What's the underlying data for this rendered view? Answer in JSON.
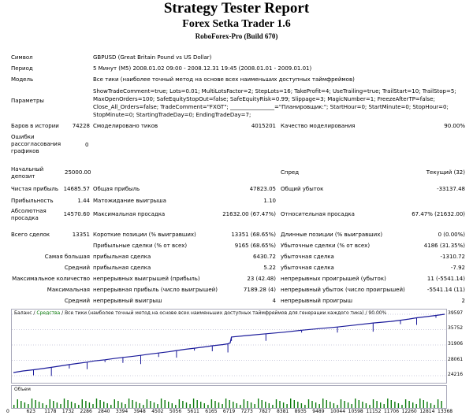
{
  "report": {
    "title": "Strategy Tester Report",
    "expert": "Forex Setka Trader 1.6",
    "server": "RoboForex-Pro (Build 670)"
  },
  "info": {
    "symbol_label": "Символ",
    "symbol_value": "GBPUSD (Great Britain Pound vs US Dollar)",
    "period_label": "Период",
    "period_value": "5 Минут (M5) 2008.01.02 09:00 - 2008.12.31 19:45 (2008.01.01 - 2009.01.01)",
    "model_label": "Модель",
    "model_value": "Все тики (наиболее точный метод на основе всех наименьших доступных таймфреймов)",
    "params_label": "Параметры",
    "params_value": "ShowTradeComment=true; Lots=0.01; MultiLotsFactor=2; StepLots=16; TakeProfit=4; UseTrailing=true; TrailStart=10; TrailStop=5; MaxOpenOrders=100; SafeEquityStopOut=false; SafeEquityRisk=0.99; Slippage=3; MagicNumber=1; FreezeAfterTP=false; Close_All_Orders=false; TradeComment=\"FXGT\"; ________________=\"Планировщик:\"; StartHour=0; StartMinute=0; StopHour=0; StopMinute=0; StartingTradeDay=0; EndingTradeDay=7;"
  },
  "stats": {
    "bars_label": "Баров в истории",
    "bars_value": "74228",
    "ticks_label": "Смоделировано тиков",
    "ticks_value": "4015201",
    "quality_label": "Качество моделирования",
    "quality_value": "90.00%",
    "errors_label": "Ошибки рассогласования графиков",
    "errors_value": "0",
    "deposit_label": "Начальный депозит",
    "deposit_value": "25000.00",
    "spread_label": "Спред",
    "spread_value": "Текущий (32)",
    "net_label": "Чистая прибыль",
    "net_value": "14685.57",
    "gross_profit_label": "Общая прибыль",
    "gross_profit_value": "47823.05",
    "gross_loss_label": "Общий убыток",
    "gross_loss_value": "-33137.48",
    "pf_label": "Прибыльность",
    "pf_value": "1.44",
    "expected_label": "Матожидание выигрыша",
    "expected_value": "1.10",
    "abs_dd_label": "Абсолютная просадка",
    "abs_dd_value": "14570.60",
    "max_dd_label": "Максимальная просадка",
    "max_dd_value": "21632.00 (67.47%)",
    "rel_dd_label": "Относительная просадка",
    "rel_dd_value": "67.47% (21632.00)",
    "total_label": "Всего сделок",
    "total_value": "13351",
    "short_label": "Короткие позиции (% выигравших)",
    "short_value": "13351 (68.65%)",
    "long_label": "Длинные позиции (% выигравших)",
    "long_value": "0 (0.00%)",
    "profit_trades_label": "Прибыльные сделки (% от всех)",
    "profit_trades_value": "9165 (68.65%)",
    "loss_trades_label": "Убыточные сделки (% от всех)",
    "loss_trades_value": "4186 (31.35%)",
    "largest_label": "Самая большая",
    "largest_profit_label": "прибыльная сделка",
    "largest_profit_value": "6430.72",
    "largest_loss_label": "убыточная сделка",
    "largest_loss_value": "-1310.72",
    "average_label": "Средний",
    "avg_profit_label": "прибыльная сделка",
    "avg_profit_value": "5.22",
    "avg_loss_label": "убыточная сделка",
    "avg_loss_value": "-7.92",
    "maxcount_label": "Максимальное количество",
    "cons_wins_label": "непрерывных выигрышей (прибыль)",
    "cons_wins_value": "23 (42.48)",
    "cons_losses_label": "непрерывных проигрышей (убыток)",
    "cons_losses_value": "11 (-5541.14)",
    "maximal_label": "Максимальная",
    "cons_profit_label": "непрерывная прибыль (число выигрышей)",
    "cons_profit_value": "7189.28 (4)",
    "cons_loss_label": "непрерывный убыток (число проигрышей)",
    "cons_loss_value": "-5541.14 (11)",
    "average2_label": "Средний",
    "avg_cons_wins_label": "непрерывный выигрыш",
    "avg_cons_wins_value": "4",
    "avg_cons_losses_label": "непрерывный проигрыш",
    "avg_cons_losses_value": "2"
  },
  "chart": {
    "legend_balance": "Баланс",
    "legend_sep": " / ",
    "legend_equity": "Средства",
    "legend_rest": " / Все тики (наиболее точный метод на основе всех наименьших доступных таймфреймов для генерации каждого тика) / 90.00%",
    "volume_label": "Объем",
    "line_color": "#1a1a9a",
    "equity_color": "#0a7a0a"
  },
  "chart_data": {
    "type": "line",
    "y_ticks": [
      "39597",
      "35752",
      "31906",
      "28061",
      "24216"
    ],
    "x_ticks": [
      "0",
      "623",
      "1178",
      "1732",
      "2286",
      "2840",
      "3394",
      "3948",
      "4502",
      "5056",
      "5611",
      "6165",
      "6719",
      "7273",
      "7827",
      "8381",
      "8935",
      "9489",
      "10044",
      "10598",
      "11152",
      "11706",
      "12260",
      "12814",
      "13368"
    ],
    "ylim": [
      24216,
      39597
    ],
    "xlim": [
      0,
      13368
    ],
    "series": [
      {
        "x": [
          0,
          300,
          623,
          900,
          1178,
          1500,
          1732,
          2000,
          2286,
          2500,
          2840,
          3100,
          3394,
          3650,
          3948,
          4200,
          4502,
          4800,
          5056,
          5300,
          5611,
          5900,
          6165,
          6500,
          6650,
          6719,
          6760,
          7273,
          7827,
          8381,
          8935,
          9489,
          10044,
          10598,
          11152,
          11706,
          12000,
          12260,
          12500,
          12814,
          13100,
          13368
        ],
        "y": [
          25000,
          25400,
          25700,
          26000,
          26300,
          26700,
          27000,
          27300,
          27600,
          27900,
          28200,
          28500,
          28800,
          29000,
          29300,
          29600,
          29900,
          30200,
          30500,
          30800,
          31100,
          31400,
          31700,
          32000,
          32200,
          32400,
          33900,
          34300,
          34700,
          35100,
          35600,
          36000,
          36400,
          36900,
          37400,
          37800,
          38100,
          38400,
          38700,
          39000,
          39300,
          39597
        ]
      }
    ]
  }
}
